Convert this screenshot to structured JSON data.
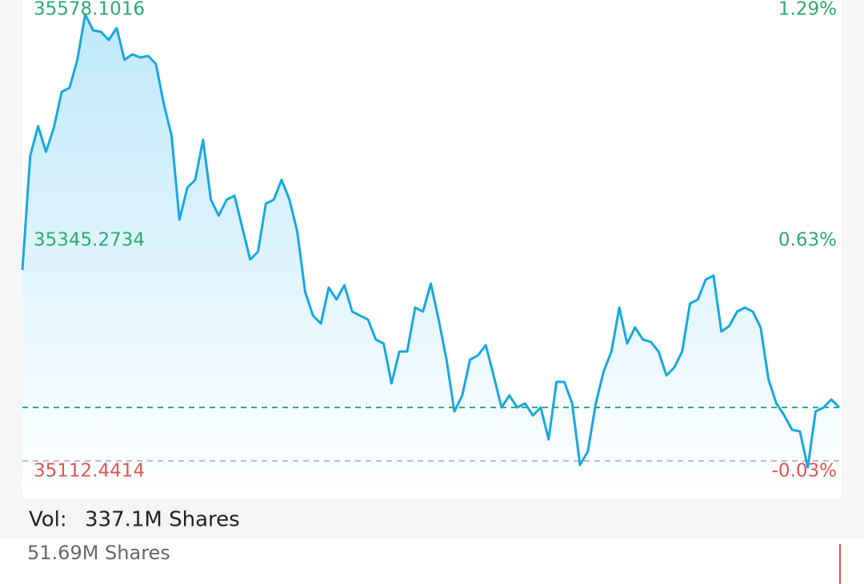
{
  "chart_data": {
    "type": "line",
    "series": [
      {
        "color": "#17a8e2",
        "values": [
          35315.5,
          35430.7,
          35460.5,
          35434.7,
          35458.9,
          35495.1,
          35499.2,
          35527.4,
          35573.3,
          35557.2,
          35555.6,
          35547.5,
          35559.6,
          35527.4,
          35533.0,
          35529.8,
          35531.4,
          35523.3,
          35483.1,
          35450.8,
          35366.2,
          35398.5,
          35406.5,
          35446.8,
          35386.4,
          35370.3,
          35386.4,
          35390.4,
          35358.2,
          35325.9,
          35334.0,
          35382.3,
          35386.4,
          35406.5,
          35386.4,
          35354.1,
          35293.7,
          35269.5,
          35261.5,
          35297.7,
          35285.7,
          35300.2,
          35273.6,
          35269.5,
          35265.5,
          35245.4,
          35241.3,
          35201.1,
          35233.3,
          35233.3,
          35277.6,
          35273.6,
          35301.8,
          35265.5,
          35225.2,
          35172.9,
          35189.0,
          35225.2,
          35229.3,
          35239.7,
          35209.1,
          35176.9,
          35189.0,
          35176.9,
          35180.9,
          35168.8,
          35176.9,
          35144.7,
          35202.7,
          35202.7,
          35180.9,
          35118.9,
          35132.6,
          35180.9,
          35213.1,
          35233.3,
          35277.6,
          35241.3,
          35257.5,
          35245.4,
          35243.0,
          35233.3,
          35209.1,
          35217.2,
          35233.3,
          35281.6,
          35285.7,
          35305.8,
          35309.8,
          35253.4,
          35259.1,
          35273.6,
          35277.6,
          35273.6,
          35257.5,
          35205.1,
          35180.9,
          35168.8,
          35154.3,
          35152.7,
          35116.5,
          35172.9,
          35176.9,
          35184.9,
          35176.9
        ]
      }
    ],
    "ylim": [
      35112.4414,
      35578.1016
    ],
    "yticks": [
      35112.4414,
      35345.2734,
      35578.1016
    ],
    "y2lim": [
      -0.03,
      1.29
    ],
    "y2ticks": [
      {
        "value": -0.03,
        "label": "-0.03%"
      },
      {
        "value": 0.63,
        "label": "0.63%"
      },
      {
        "value": 1.29,
        "label": "1.29%"
      }
    ],
    "reference_lines": [
      {
        "value": 35176.9,
        "color": "#2bb078"
      },
      {
        "value": 35123.0,
        "color": "#b9b9c9"
      }
    ]
  },
  "volume": {
    "label": "Vol:",
    "total": "337.1M Shares",
    "current": "51.69M Shares"
  }
}
